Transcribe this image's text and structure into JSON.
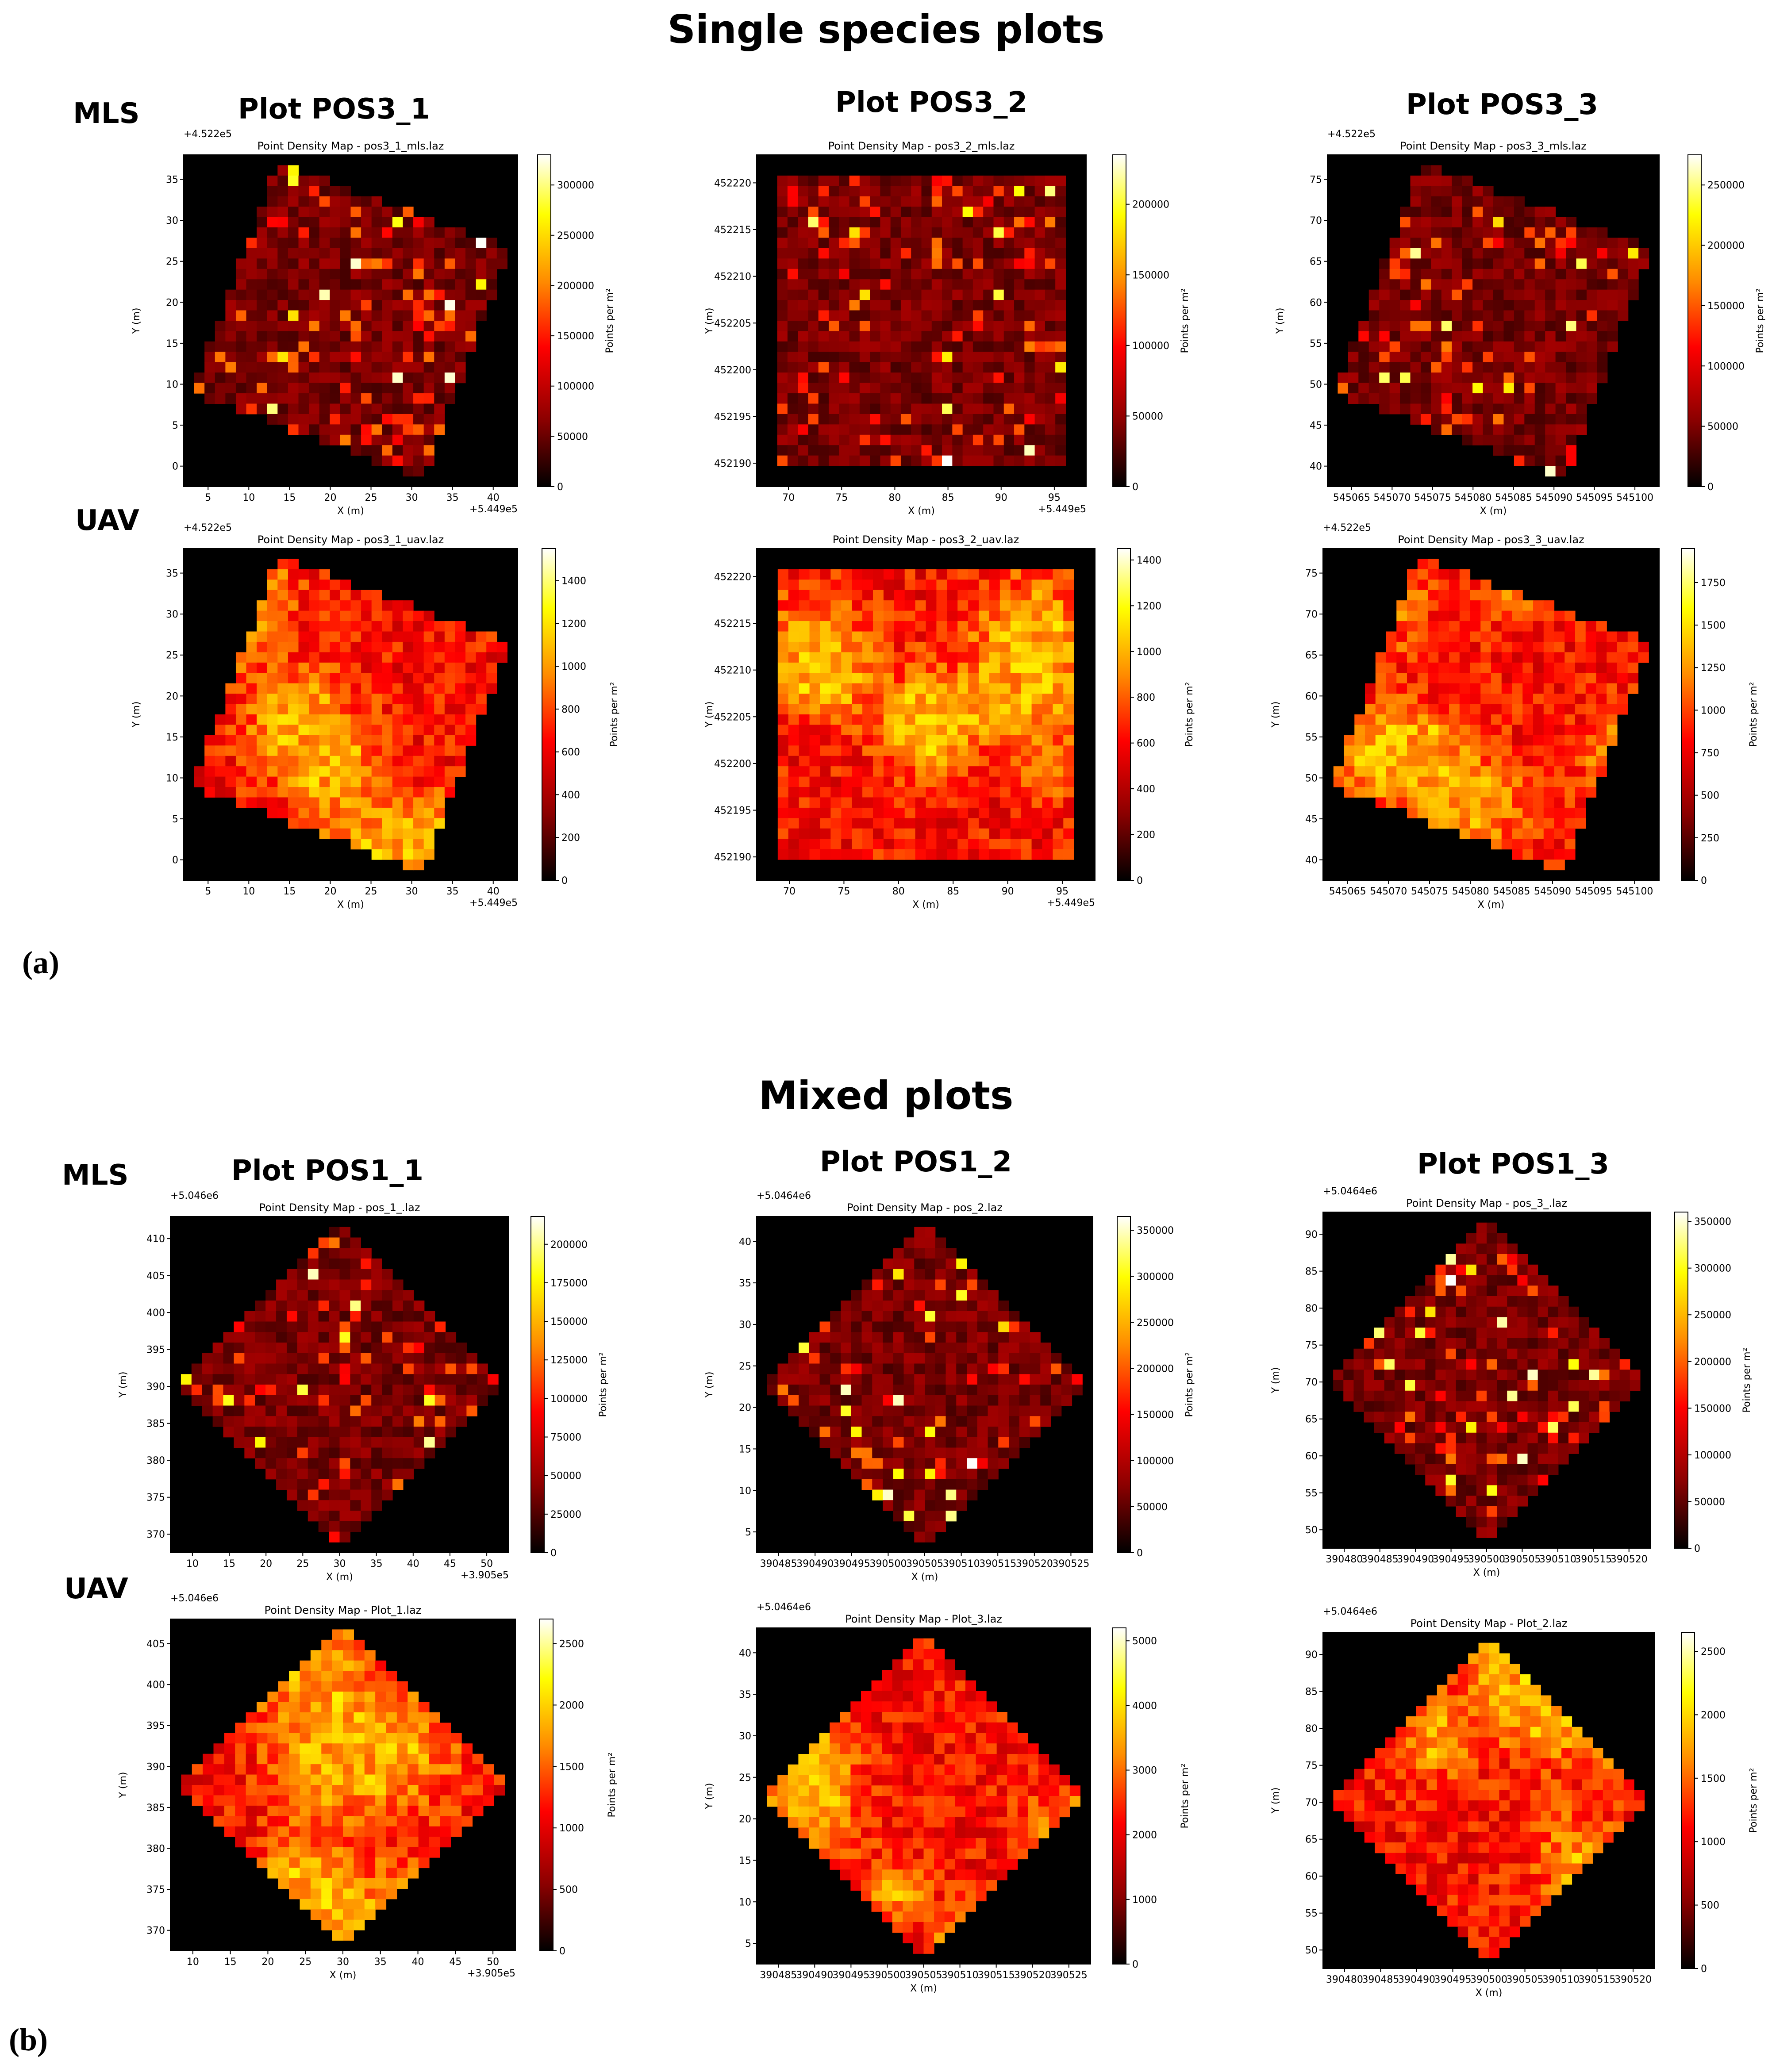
{
  "figure": {
    "section_a_title": "Single species plots",
    "section_b_title": "Mixed plots",
    "label_a": "(a)",
    "label_b": "(b)",
    "row_mls": "MLS",
    "row_uav": "UAV",
    "cols_a": [
      "Plot POS3_1",
      "Plot POS3_2",
      "Plot POS3_3"
    ],
    "cols_b": [
      "Plot POS1_1",
      "Plot POS1_2",
      "Plot POS1_3"
    ]
  },
  "colors": {
    "colormap": "hot",
    "background": "#000000",
    "stops": [
      "#000000",
      "#8b0000",
      "#ff0000",
      "#ff8c00",
      "#ffff00",
      "#ffffff"
    ]
  },
  "chart_data": [
    {
      "type": "heatmap",
      "title": "Point Density Map - pos3_1_mls.laz",
      "xlabel": "X (m)",
      "ylabel": "Y (m)",
      "colorbar_label": "Points per m²",
      "x_offset": "+5.449e5",
      "y_offset": "+4.522e5",
      "xlim": [
        2,
        42
      ],
      "ylim": [
        -3,
        37
      ],
      "xticks": [
        "5",
        "10",
        "15",
        "20",
        "25",
        "30",
        "35",
        "40"
      ],
      "yticks": [
        "0",
        "5",
        "10",
        "15",
        "20",
        "25",
        "30",
        "35"
      ],
      "cbar_ticks": [
        "0",
        "50000",
        "100000",
        "150000",
        "200000",
        "250000",
        "300000"
      ],
      "vmax": 330000,
      "shape": "tilted",
      "intensity": "sparse"
    },
    {
      "type": "heatmap",
      "title": "Point Density Map - pos3_2_mls.laz",
      "xlabel": "X (m)",
      "ylabel": "Y (m)",
      "colorbar_label": "Points per m²",
      "x_offset": "+5.449e5",
      "y_offset": "",
      "xlim": [
        67,
        98
      ],
      "ylim": [
        452189,
        452221
      ],
      "xticks": [
        "70",
        "75",
        "80",
        "85",
        "90",
        "95"
      ],
      "yticks": [
        "452190",
        "452195",
        "452200",
        "452205",
        "452210",
        "452215",
        "452220"
      ],
      "cbar_ticks": [
        "0",
        "50000",
        "100000",
        "150000",
        "200000"
      ],
      "vmax": 235000,
      "shape": "square",
      "intensity": "sparse"
    },
    {
      "type": "heatmap",
      "title": "Point Density Map - pos3_3_mls.laz",
      "xlabel": "X (m)",
      "ylabel": "Y (m)",
      "colorbar_label": "Points per m²",
      "x_offset": "",
      "y_offset": "+4.522e5",
      "xlim": [
        545062,
        545102
      ],
      "ylim": [
        39,
        75
      ],
      "xticks": [
        "545065",
        "545070",
        "545075",
        "545080",
        "545085",
        "545090",
        "545095",
        "545100"
      ],
      "yticks": [
        "40",
        "45",
        "50",
        "55",
        "60",
        "65",
        "70",
        "75"
      ],
      "cbar_ticks": [
        "0",
        "50000",
        "100000",
        "150000",
        "200000",
        "250000"
      ],
      "vmax": 275000,
      "shape": "tilted",
      "intensity": "sparse"
    },
    {
      "type": "heatmap",
      "title": "Point Density Map - pos3_1_uav.laz",
      "xlabel": "X (m)",
      "ylabel": "Y (m)",
      "colorbar_label": "Points per m²",
      "x_offset": "+5.449e5",
      "y_offset": "+4.522e5",
      "xlim": [
        2,
        42
      ],
      "ylim": [
        -3,
        37
      ],
      "xticks": [
        "5",
        "10",
        "15",
        "20",
        "25",
        "30",
        "35",
        "40"
      ],
      "yticks": [
        "0",
        "5",
        "10",
        "15",
        "20",
        "25",
        "30",
        "35"
      ],
      "cbar_ticks": [
        "0",
        "200",
        "400",
        "600",
        "800",
        "1000",
        "1200",
        "1400"
      ],
      "vmax": 1550,
      "shape": "tilted",
      "intensity": "dense"
    },
    {
      "type": "heatmap",
      "title": "Point Density Map - pos3_2_uav.laz",
      "xlabel": "X (m)",
      "ylabel": "Y (m)",
      "colorbar_label": "Points per m²",
      "x_offset": "+5.449e5",
      "y_offset": "",
      "xlim": [
        67,
        98
      ],
      "ylim": [
        452189,
        452221
      ],
      "xticks": [
        "70",
        "75",
        "80",
        "85",
        "90",
        "95"
      ],
      "yticks": [
        "452190",
        "452195",
        "452200",
        "452205",
        "452210",
        "452215",
        "452220"
      ],
      "cbar_ticks": [
        "0",
        "200",
        "400",
        "600",
        "800",
        "1000",
        "1200",
        "1400"
      ],
      "vmax": 1450,
      "shape": "square",
      "intensity": "dense"
    },
    {
      "type": "heatmap",
      "title": "Point Density Map - pos3_3_uav.laz",
      "xlabel": "X (m)",
      "ylabel": "Y (m)",
      "colorbar_label": "Points per m²",
      "x_offset": "",
      "y_offset": "+4.522e5",
      "xlim": [
        545062,
        545102
      ],
      "ylim": [
        39,
        76
      ],
      "xticks": [
        "545065",
        "545070",
        "545075",
        "545080",
        "545085",
        "545090",
        "545095",
        "545100"
      ],
      "yticks": [
        "40",
        "45",
        "50",
        "55",
        "60",
        "65",
        "70",
        "75"
      ],
      "cbar_ticks": [
        "0",
        "250",
        "500",
        "750",
        "1000",
        "1250",
        "1500",
        "1750"
      ],
      "vmax": 1950,
      "shape": "tilted",
      "intensity": "dense"
    },
    {
      "type": "heatmap",
      "title": "Point Density Map - pos_1_.laz",
      "xlabel": "X (m)",
      "ylabel": "Y (m)",
      "colorbar_label": "Points per m²",
      "x_offset": "+3.905e5",
      "y_offset": "+5.046e6",
      "xlim": [
        7,
        52
      ],
      "ylim": [
        366,
        410
      ],
      "xticks": [
        "10",
        "15",
        "20",
        "25",
        "30",
        "35",
        "40",
        "45",
        "50"
      ],
      "yticks": [
        "370",
        "375",
        "380",
        "385",
        "390",
        "395",
        "400",
        "405",
        "410"
      ],
      "cbar_ticks": [
        "0",
        "25000",
        "50000",
        "75000",
        "100000",
        "125000",
        "150000",
        "175000",
        "200000"
      ],
      "vmax": 218000,
      "shape": "diamond",
      "intensity": "sparse"
    },
    {
      "type": "heatmap",
      "title": "Point Density Map - pos_2.laz",
      "xlabel": "X (m)",
      "ylabel": "Y (m)",
      "colorbar_label": "Points per m²",
      "x_offset": "",
      "y_offset": "+5.0464e6",
      "xlim": [
        390484,
        390528
      ],
      "ylim": [
        1,
        44
      ],
      "xticks": [
        "390485",
        "390490",
        "390495",
        "390500",
        "390505",
        "390510",
        "390515",
        "390520",
        "390525"
      ],
      "yticks": [
        "5",
        "10",
        "15",
        "20",
        "25",
        "30",
        "35",
        "40"
      ],
      "cbar_ticks": [
        "0",
        "50000",
        "100000",
        "150000",
        "200000",
        "250000",
        "300000",
        "350000"
      ],
      "vmax": 365000,
      "shape": "diamond",
      "intensity": "sparse"
    },
    {
      "type": "heatmap",
      "title": "Point Density Map - pos_3_.laz",
      "xlabel": "X (m)",
      "ylabel": "Y (m)",
      "colorbar_label": "Points per m²",
      "x_offset": "",
      "y_offset": "+5.0464e6",
      "xlim": [
        390479,
        390523
      ],
      "ylim": [
        50,
        94
      ],
      "xticks": [
        "390480",
        "390485",
        "390490",
        "390495",
        "390500",
        "390505",
        "390510",
        "390515",
        "390520"
      ],
      "yticks": [
        "50",
        "55",
        "60",
        "65",
        "70",
        "75",
        "80",
        "85",
        "90"
      ],
      "cbar_ticks": [
        "0",
        "50000",
        "100000",
        "150000",
        "200000",
        "250000",
        "300000",
        "350000"
      ],
      "vmax": 360000,
      "shape": "diamond",
      "intensity": "sparse"
    },
    {
      "type": "heatmap",
      "title": "Point Density Map - Plot_1.laz",
      "xlabel": "X (m)",
      "ylabel": "Y (m)",
      "colorbar_label": "Points per m²",
      "x_offset": "+3.905e5",
      "y_offset": "+5.046e6",
      "xlim": [
        7,
        52
      ],
      "ylim": [
        366,
        409
      ],
      "xticks": [
        "10",
        "15",
        "20",
        "25",
        "30",
        "35",
        "40",
        "45",
        "50"
      ],
      "yticks": [
        "370",
        "375",
        "380",
        "385",
        "390",
        "395",
        "400",
        "405"
      ],
      "cbar_ticks": [
        "0",
        "500",
        "1000",
        "1500",
        "2000",
        "2500"
      ],
      "vmax": 2700,
      "shape": "diamond",
      "intensity": "dense"
    },
    {
      "type": "heatmap",
      "title": "Point Density Map - Plot_3.laz",
      "xlabel": "X (m)",
      "ylabel": "Y (m)",
      "colorbar_label": "Points per m²",
      "x_offset": "",
      "y_offset": "+5.0464e6",
      "xlim": [
        390484,
        390528
      ],
      "ylim": [
        1,
        44
      ],
      "xticks": [
        "390485",
        "390490",
        "390495",
        "390500",
        "390505",
        "390510",
        "390515",
        "390520",
        "390525"
      ],
      "yticks": [
        "5",
        "10",
        "15",
        "20",
        "25",
        "30",
        "35",
        "40"
      ],
      "cbar_ticks": [
        "0",
        "1000",
        "2000",
        "3000",
        "4000",
        "5000"
      ],
      "vmax": 5200,
      "shape": "diamond",
      "intensity": "dense"
    },
    {
      "type": "heatmap",
      "title": "Point Density Map - Plot_2.laz",
      "xlabel": "X (m)",
      "ylabel": "Y (m)",
      "colorbar_label": "Points per m²",
      "x_offset": "",
      "y_offset": "+5.0464e6",
      "xlim": [
        390479,
        390523
      ],
      "ylim": [
        50,
        94
      ],
      "xticks": [
        "390480",
        "390485",
        "390490",
        "390495",
        "390500",
        "390505",
        "390510",
        "390515",
        "390520"
      ],
      "yticks": [
        "50",
        "55",
        "60",
        "65",
        "70",
        "75",
        "80",
        "85",
        "90"
      ],
      "cbar_ticks": [
        "0",
        "500",
        "1000",
        "1500",
        "2000",
        "2500"
      ],
      "vmax": 2650,
      "shape": "diamond",
      "intensity": "dense"
    }
  ]
}
